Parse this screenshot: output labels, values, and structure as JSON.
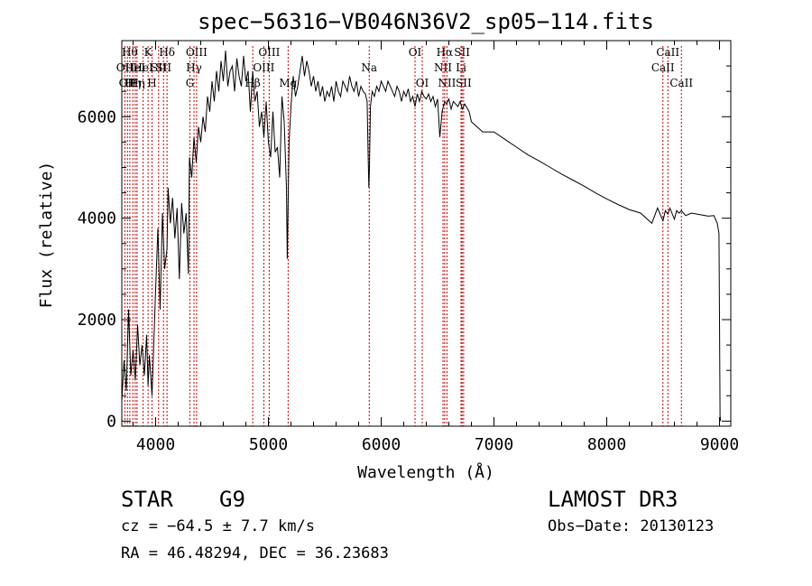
{
  "chart_data": {
    "type": "line",
    "title": "spec−56316−VB046N36V2_sp05−114.fits",
    "xlabel": "Wavelength (Å)",
    "ylabel": "Flux (relative)",
    "xlim": [
      3700,
      9100
    ],
    "ylim": [
      -100,
      7500
    ],
    "x_ticks": [
      4000,
      5000,
      6000,
      7000,
      8000,
      9000
    ],
    "y_ticks": [
      0,
      2000,
      4000,
      6000
    ],
    "grid": false,
    "series": [
      {
        "name": "spectrum",
        "x": [
          3700,
          3720,
          3740,
          3760,
          3780,
          3800,
          3820,
          3840,
          3860,
          3880,
          3900,
          3920,
          3933,
          3945,
          3968,
          3985,
          4000,
          4020,
          4040,
          4060,
          4080,
          4101,
          4110,
          4130,
          4150,
          4170,
          4190,
          4210,
          4230,
          4250,
          4270,
          4290,
          4300,
          4320,
          4340,
          4360,
          4380,
          4400,
          4420,
          4440,
          4460,
          4480,
          4500,
          4520,
          4540,
          4560,
          4580,
          4600,
          4620,
          4640,
          4660,
          4680,
          4700,
          4720,
          4740,
          4760,
          4780,
          4800,
          4820,
          4840,
          4861,
          4880,
          4900,
          4920,
          4940,
          4960,
          4980,
          5000,
          5020,
          5040,
          5060,
          5080,
          5100,
          5120,
          5140,
          5160,
          5167,
          5173,
          5183,
          5200,
          5220,
          5240,
          5260,
          5280,
          5300,
          5320,
          5340,
          5360,
          5380,
          5400,
          5420,
          5440,
          5460,
          5480,
          5500,
          5520,
          5540,
          5560,
          5580,
          5600,
          5620,
          5640,
          5660,
          5680,
          5700,
          5720,
          5740,
          5760,
          5780,
          5800,
          5820,
          5840,
          5860,
          5875,
          5885,
          5890,
          5896,
          5905,
          5920,
          5940,
          5960,
          5980,
          6000,
          6020,
          6040,
          6060,
          6080,
          6100,
          6120,
          6140,
          6160,
          6180,
          6200,
          6220,
          6240,
          6260,
          6280,
          6300,
          6320,
          6340,
          6360,
          6380,
          6400,
          6420,
          6440,
          6460,
          6480,
          6500,
          6520,
          6540,
          6563,
          6580,
          6600,
          6620,
          6640,
          6660,
          6680,
          6700,
          6720,
          6740,
          6760,
          6780,
          6800,
          6900,
          7000,
          7100,
          7200,
          7300,
          7400,
          7500,
          7600,
          7700,
          7800,
          7900,
          8000,
          8100,
          8200,
          8300,
          8400,
          8450,
          8498,
          8520,
          8542,
          8560,
          8600,
          8620,
          8640,
          8662,
          8680,
          8700,
          8750,
          8800,
          8850,
          8900,
          8950,
          8980,
          8995,
          9000,
          9005,
          9010
        ],
        "y": [
          400,
          1200,
          600,
          2200,
          900,
          1400,
          800,
          1900,
          1100,
          1500,
          900,
          1700,
          700,
          1300,
          500,
          1600,
          2600,
          3800,
          2200,
          4100,
          3000,
          3400,
          4600,
          3900,
          4400,
          3600,
          4200,
          2800,
          4300,
          3700,
          4100,
          2900,
          5200,
          4800,
          5600,
          5100,
          5800,
          5500,
          6000,
          5700,
          6400,
          6100,
          6700,
          6300,
          6900,
          6500,
          7100,
          6700,
          7300,
          6600,
          6900,
          7000,
          6500,
          7150,
          6800,
          6600,
          7200,
          6700,
          6900,
          6100,
          6900,
          6300,
          6500,
          5800,
          6100,
          5600,
          6300,
          5500,
          5200,
          6100,
          5300,
          5400,
          4800,
          6400,
          5900,
          4600,
          3200,
          4000,
          5500,
          6200,
          6800,
          6400,
          6600,
          6900,
          7200,
          6800,
          7100,
          6900,
          6600,
          6800,
          6500,
          6700,
          6400,
          6600,
          6300,
          6500,
          6400,
          6600,
          6300,
          6700,
          6500,
          6400,
          6700,
          6600,
          6500,
          6800,
          6600,
          6500,
          6700,
          6400,
          6600,
          6500,
          6450,
          6300,
          5200,
          4600,
          5000,
          6200,
          6500,
          6400,
          6600,
          6500,
          6700,
          6600,
          6500,
          6700,
          6600,
          6500,
          6400,
          6600,
          6500,
          6300,
          6500,
          6400,
          6550,
          6300,
          6400,
          6200,
          6450,
          6300,
          6500,
          6400,
          6350,
          6450,
          6300,
          6400,
          6200,
          6350,
          5600,
          6100,
          6300,
          6250,
          6350,
          6150,
          6300,
          6250,
          6200,
          6300,
          6150,
          6250,
          6180,
          6100,
          5900,
          5700,
          5700,
          5550,
          5400,
          5250,
          5130,
          5000,
          4870,
          4750,
          4630,
          4500,
          4380,
          4270,
          4170,
          4100,
          3900,
          4200,
          3950,
          4150,
          4080,
          4200,
          3980,
          4150,
          4100,
          4150,
          4100,
          4050,
          4100,
          4080,
          4060,
          4040,
          4050,
          3900,
          3700,
          2000,
          100,
          0
        ]
      }
    ],
    "line_markers": [
      {
        "wavelength": 3727,
        "label": "OII",
        "row": 2
      },
      {
        "wavelength": 3750,
        "label": "OII",
        "row": 3
      },
      {
        "wavelength": 3771,
        "label": "Hθ",
        "row": 1
      },
      {
        "wavelength": 3798,
        "label": "Hη",
        "row": 3
      },
      {
        "wavelength": 3819,
        "label": "HeI",
        "row": 2
      },
      {
        "wavelength": 3835,
        "label": "Hη",
        "row": 3
      },
      {
        "wavelength": 3889,
        "label": "HeI",
        "row": 2
      },
      {
        "wavelength": 3933,
        "label": "K",
        "row": 1
      },
      {
        "wavelength": 3968,
        "label": "H",
        "row": 3
      },
      {
        "wavelength": 4026,
        "label": "SII",
        "row": 2
      },
      {
        "wavelength": 4070,
        "label": "SII",
        "row": 2
      },
      {
        "wavelength": 4101,
        "label": "Hδ",
        "row": 1
      },
      {
        "wavelength": 4304,
        "label": "G",
        "row": 3
      },
      {
        "wavelength": 4340,
        "label": "Hγ",
        "row": 2
      },
      {
        "wavelength": 4363,
        "label": "OIII",
        "row": 1
      },
      {
        "wavelength": 4861,
        "label": "Hβ",
        "row": 3
      },
      {
        "wavelength": 4959,
        "label": "OIII",
        "row": 2
      },
      {
        "wavelength": 5007,
        "label": "OIII",
        "row": 1
      },
      {
        "wavelength": 5175,
        "label": "Mg",
        "row": 3
      },
      {
        "wavelength": 5894,
        "label": "Na",
        "row": 2
      },
      {
        "wavelength": 6300,
        "label": "OI",
        "row": 1
      },
      {
        "wavelength": 6364,
        "label": "OI",
        "row": 3
      },
      {
        "wavelength": 6548,
        "label": "NII",
        "row": 2
      },
      {
        "wavelength": 6563,
        "label": "Hα",
        "row": 1
      },
      {
        "wavelength": 6583,
        "label": "NII",
        "row": 3
      },
      {
        "wavelength": 6708,
        "label": "Li",
        "row": 2
      },
      {
        "wavelength": 6717,
        "label": "SII",
        "row": 1
      },
      {
        "wavelength": 6731,
        "label": "SII",
        "row": 3
      },
      {
        "wavelength": 8498,
        "label": "CaII",
        "row": 2
      },
      {
        "wavelength": 8542,
        "label": "CaII",
        "row": 1
      },
      {
        "wavelength": 8662,
        "label": "CaII",
        "row": 3
      }
    ]
  },
  "info": {
    "class_label": "STAR",
    "subclass": "G9",
    "survey": "LAMOST DR3",
    "cz": "cz = −64.5 ± 7.7 km/s",
    "obs_date": "Obs−Date: 20130123",
    "coords": "RA =  46.48294, DEC =  36.23683"
  }
}
